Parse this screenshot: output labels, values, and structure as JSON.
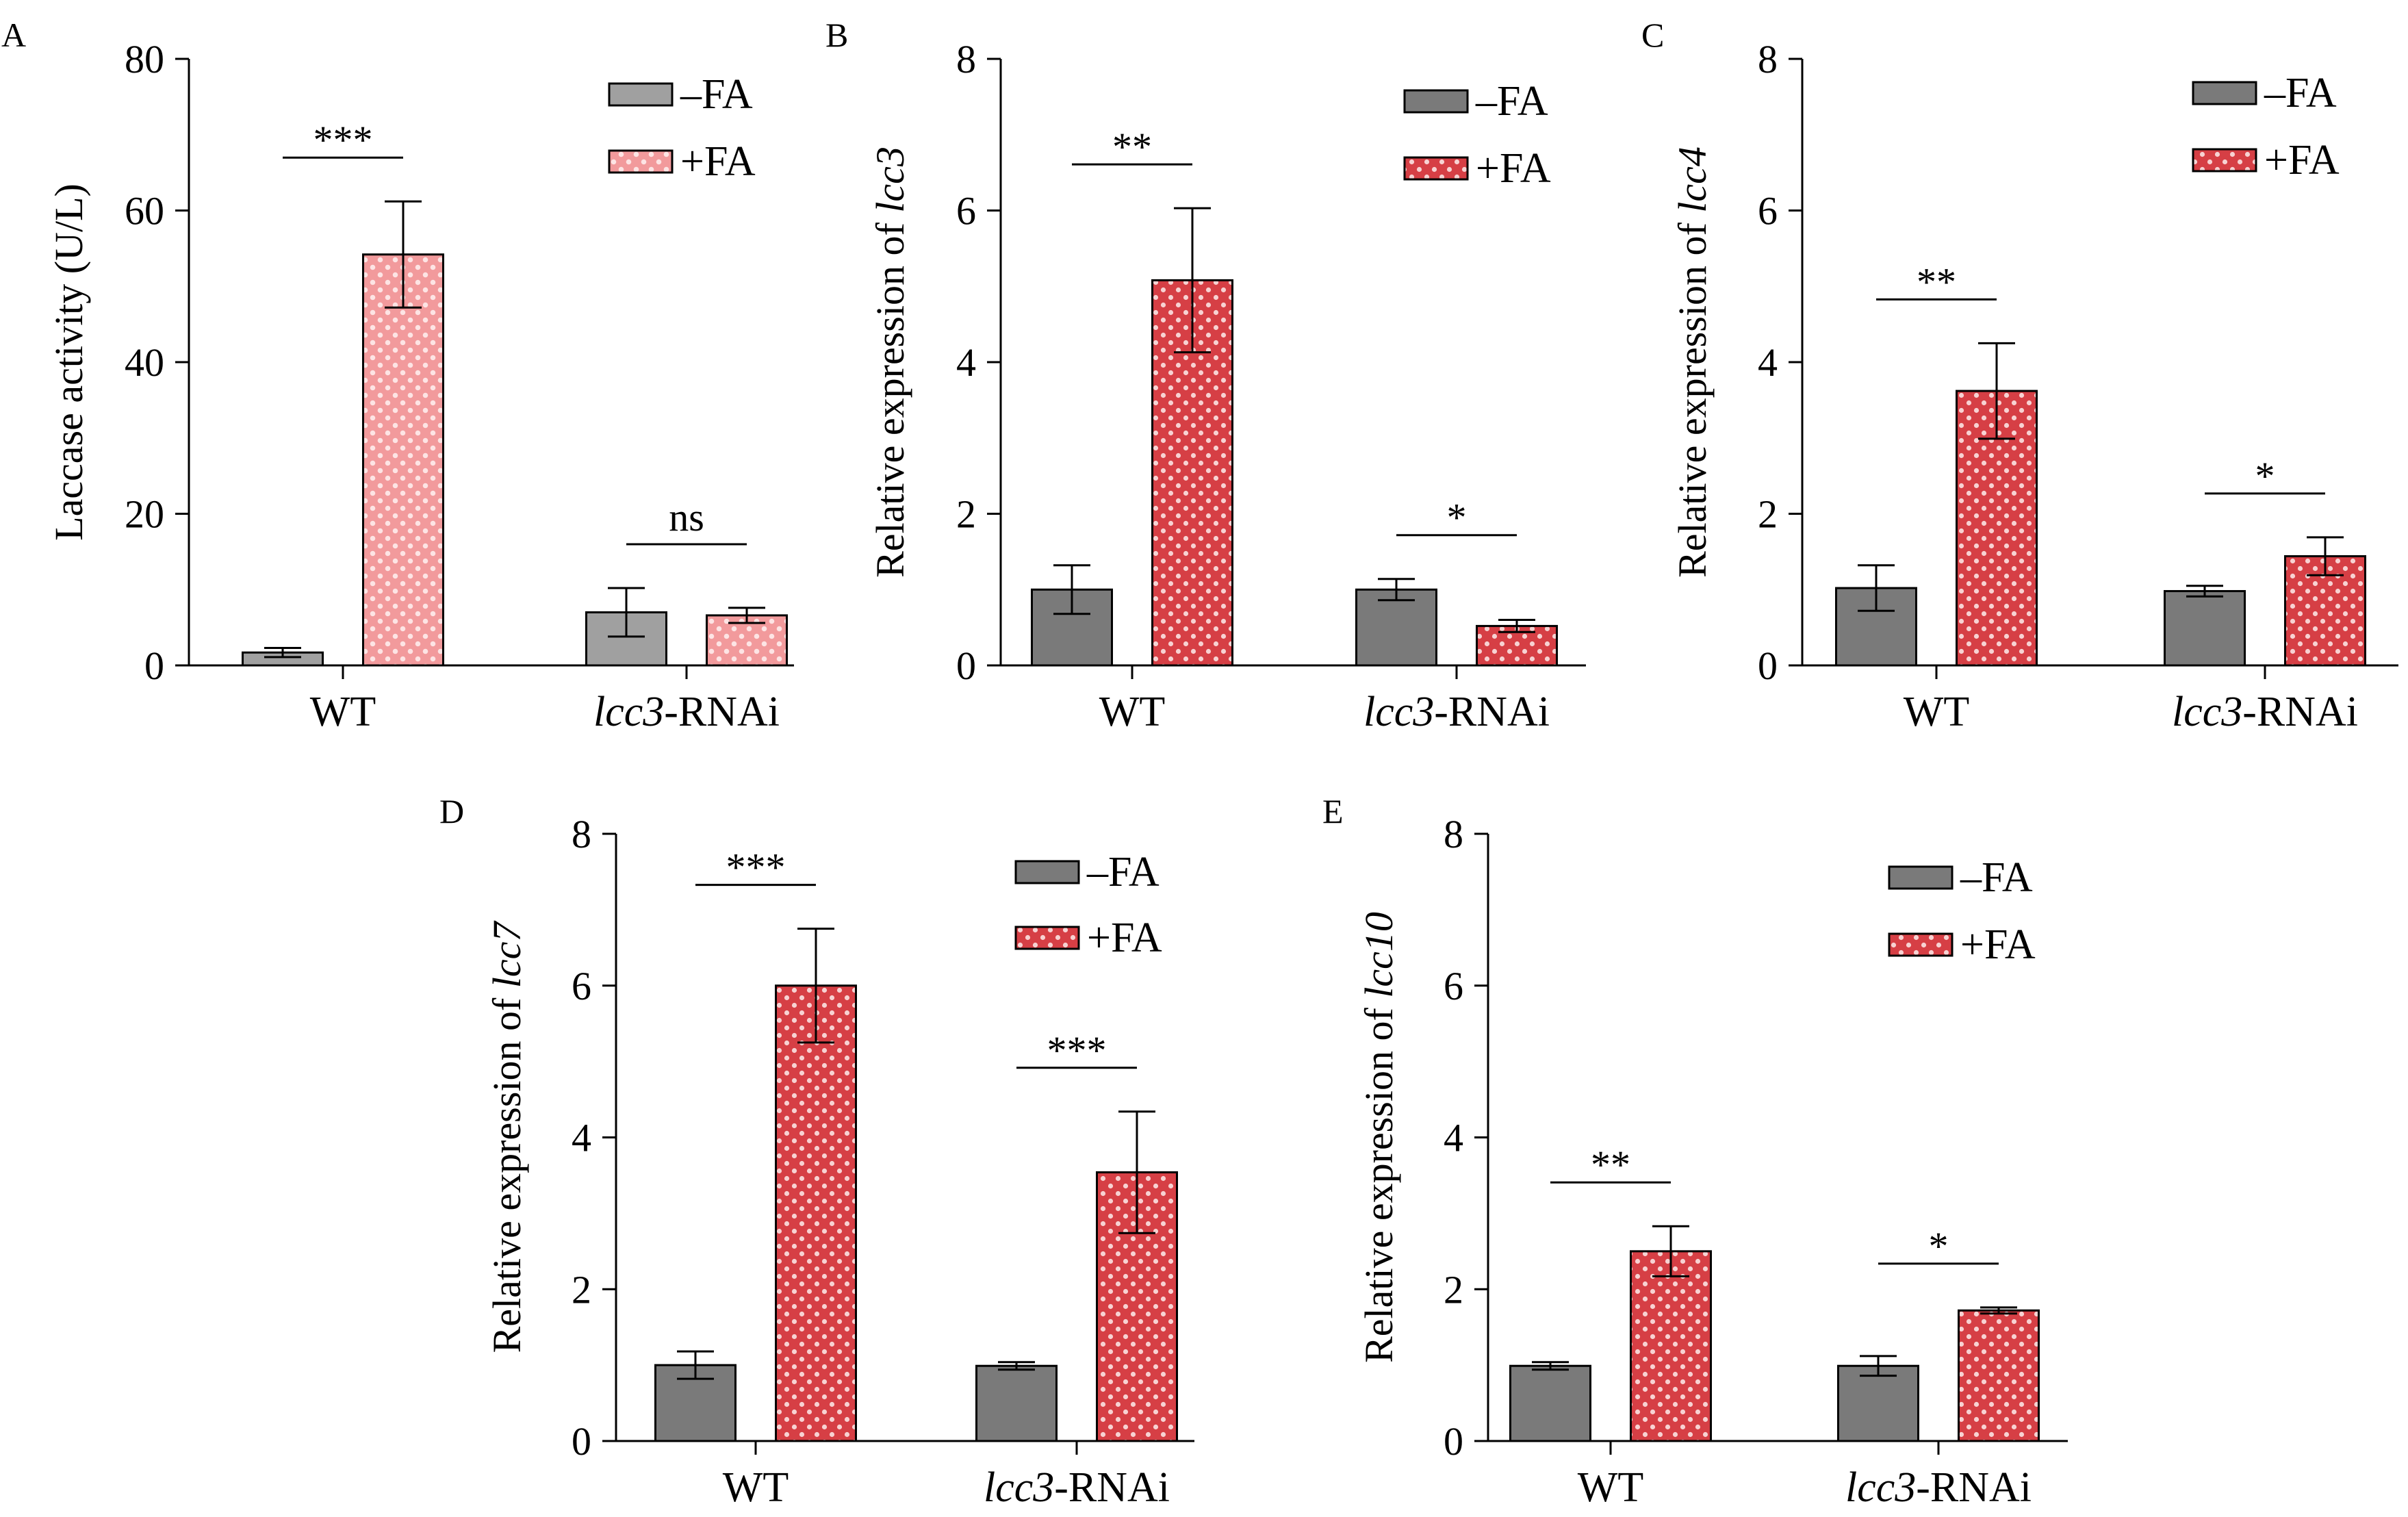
{
  "colors": {
    "minus_fa_gray": "#7a7a7a",
    "minus_fa_light_gray": "#a0a0a0",
    "plus_fa_red": "#d8454a",
    "plus_fa_pink": "#f5a8a8",
    "axis": "#000000"
  },
  "chart_data": [
    {
      "panel": "A",
      "type": "bar",
      "ylabel": "Laccase activity (U/L)",
      "ylabel_italic": "",
      "ylim": [
        0,
        80
      ],
      "yticks": [
        "0",
        "20",
        "40",
        "60",
        "80"
      ],
      "categories": [
        "WT",
        "lcc3-RNAi"
      ],
      "series": [
        {
          "name": "–FA",
          "values": [
            1.7,
            7.0
          ],
          "errors": [
            0.6,
            3.2
          ]
        },
        {
          "name": "+FA",
          "values": [
            54.2,
            6.6
          ],
          "errors": [
            7.0,
            1.0
          ]
        }
      ],
      "significance": [
        "***",
        "ns"
      ]
    },
    {
      "panel": "B",
      "type": "bar",
      "ylabel": "Relative expression of ",
      "ylabel_italic": "lcc3",
      "ylim": [
        0,
        8
      ],
      "yticks": [
        "0",
        "2",
        "4",
        "6",
        "8"
      ],
      "categories": [
        "WT",
        "lcc3-RNAi"
      ],
      "series": [
        {
          "name": "–FA",
          "values": [
            1.0,
            1.0
          ],
          "errors": [
            0.32,
            0.14
          ]
        },
        {
          "name": "+FA",
          "values": [
            5.08,
            0.52
          ],
          "errors": [
            0.95,
            0.08
          ]
        }
      ],
      "significance": [
        "**",
        "*"
      ]
    },
    {
      "panel": "C",
      "type": "bar",
      "ylabel": "Relative expression of ",
      "ylabel_italic": "lcc4",
      "ylim": [
        0,
        8
      ],
      "yticks": [
        "0",
        "2",
        "4",
        "6",
        "8"
      ],
      "categories": [
        "WT",
        "lcc3-RNAi"
      ],
      "series": [
        {
          "name": "–FA",
          "values": [
            1.02,
            0.98
          ],
          "errors": [
            0.3,
            0.07
          ]
        },
        {
          "name": "+FA",
          "values": [
            3.62,
            1.44
          ],
          "errors": [
            0.63,
            0.25
          ]
        }
      ],
      "significance": [
        "**",
        "*"
      ]
    },
    {
      "panel": "D",
      "type": "bar",
      "ylabel": "Relative expression of ",
      "ylabel_italic": "lcc7",
      "ylim": [
        0,
        8
      ],
      "yticks": [
        "0",
        "2",
        "4",
        "6",
        "8"
      ],
      "categories": [
        "WT",
        "lcc3-RNAi"
      ],
      "series": [
        {
          "name": "–FA",
          "values": [
            1.0,
            0.99
          ],
          "errors": [
            0.18,
            0.05
          ]
        },
        {
          "name": "+FA",
          "values": [
            6.0,
            3.54
          ],
          "errors": [
            0.75,
            0.8
          ]
        }
      ],
      "significance": [
        "***",
        "***"
      ]
    },
    {
      "panel": "E",
      "type": "bar",
      "ylabel": "Relative expression of ",
      "ylabel_italic": "lcc10",
      "ylim": [
        0,
        8
      ],
      "yticks": [
        "0",
        "2",
        "4",
        "6",
        "8"
      ],
      "categories": [
        "WT",
        "lcc3-RNAi"
      ],
      "series": [
        {
          "name": "–FA",
          "values": [
            0.99,
            0.99
          ],
          "errors": [
            0.05,
            0.13
          ]
        },
        {
          "name": "+FA",
          "values": [
            2.5,
            1.72
          ],
          "errors": [
            0.33,
            0.04
          ]
        }
      ],
      "significance": [
        "**",
        "*"
      ]
    }
  ]
}
